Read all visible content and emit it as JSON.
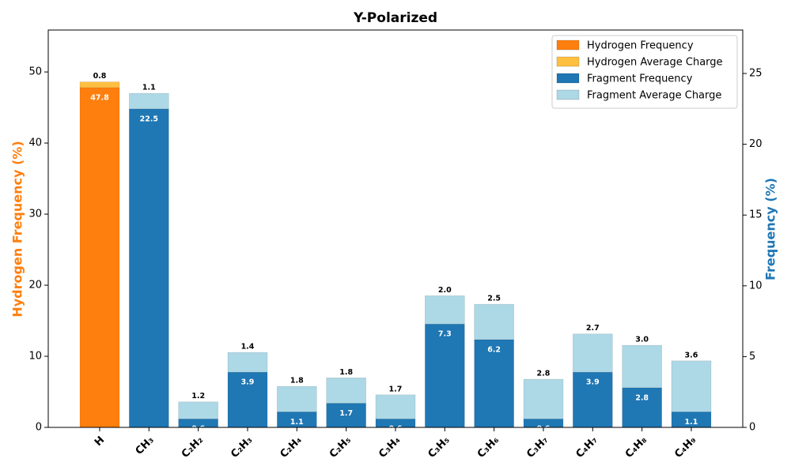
{
  "chart_data": {
    "type": "bar",
    "title": "Y-Polarized",
    "categories": [
      "H",
      "CH₃",
      "C₂H₂",
      "C₂H₃",
      "C₂H₄",
      "C₂H₅",
      "C₃H₄",
      "C₃H₅",
      "C₃H₆",
      "C₃H₇",
      "C₄H₇",
      "C₄H₈",
      "C₄H₉"
    ],
    "ylabel": "Hydrogen Frequency (%)",
    "y2label": "Frequency (%)",
    "ylim": [
      0,
      55.9
    ],
    "yticks": [
      0,
      10,
      20,
      30,
      40,
      50
    ],
    "y2lim": [
      0,
      28.07
    ],
    "y2ticks": [
      0,
      5,
      10,
      15,
      20,
      25
    ],
    "stacked": true,
    "legend": "upper right",
    "series": [
      {
        "name": "Hydrogen Frequency",
        "color": "#ff7f0e",
        "axis": "y",
        "values": [
          47.8,
          null,
          null,
          null,
          null,
          null,
          null,
          null,
          null,
          null,
          null,
          null,
          null
        ],
        "value_labels": [
          "47.8",
          null,
          null,
          null,
          null,
          null,
          null,
          null,
          null,
          null,
          null,
          null,
          null
        ]
      },
      {
        "name": "Hydrogen Average Charge",
        "color": "#ffbf40",
        "axis": "y",
        "values": [
          0.8,
          null,
          null,
          null,
          null,
          null,
          null,
          null,
          null,
          null,
          null,
          null,
          null
        ],
        "value_labels": [
          "0.8",
          null,
          null,
          null,
          null,
          null,
          null,
          null,
          null,
          null,
          null,
          null,
          null
        ]
      },
      {
        "name": "Fragment Frequency",
        "color": "#1f77b4",
        "axis": "y2",
        "values": [
          null,
          22.5,
          0.6,
          3.9,
          1.1,
          1.7,
          0.6,
          7.3,
          6.2,
          0.6,
          3.9,
          2.8,
          1.1
        ],
        "value_labels": [
          null,
          "22.5",
          "0.6",
          "3.9",
          "1.1",
          "1.7",
          "0.6",
          "7.3",
          "6.2",
          "0.6",
          "3.9",
          "2.8",
          "1.1"
        ]
      },
      {
        "name": "Fragment Average Charge",
        "color": "#add8e6",
        "axis": "y2",
        "values": [
          null,
          1.1,
          1.2,
          1.4,
          1.8,
          1.8,
          1.7,
          2.0,
          2.5,
          2.8,
          2.7,
          3.0,
          3.6
        ],
        "value_labels": [
          null,
          "1.1",
          "1.2",
          "1.4",
          "1.8",
          "1.8",
          "1.7",
          "2.0",
          "2.5",
          "2.8",
          "2.7",
          "3.0",
          "3.6"
        ]
      }
    ]
  }
}
